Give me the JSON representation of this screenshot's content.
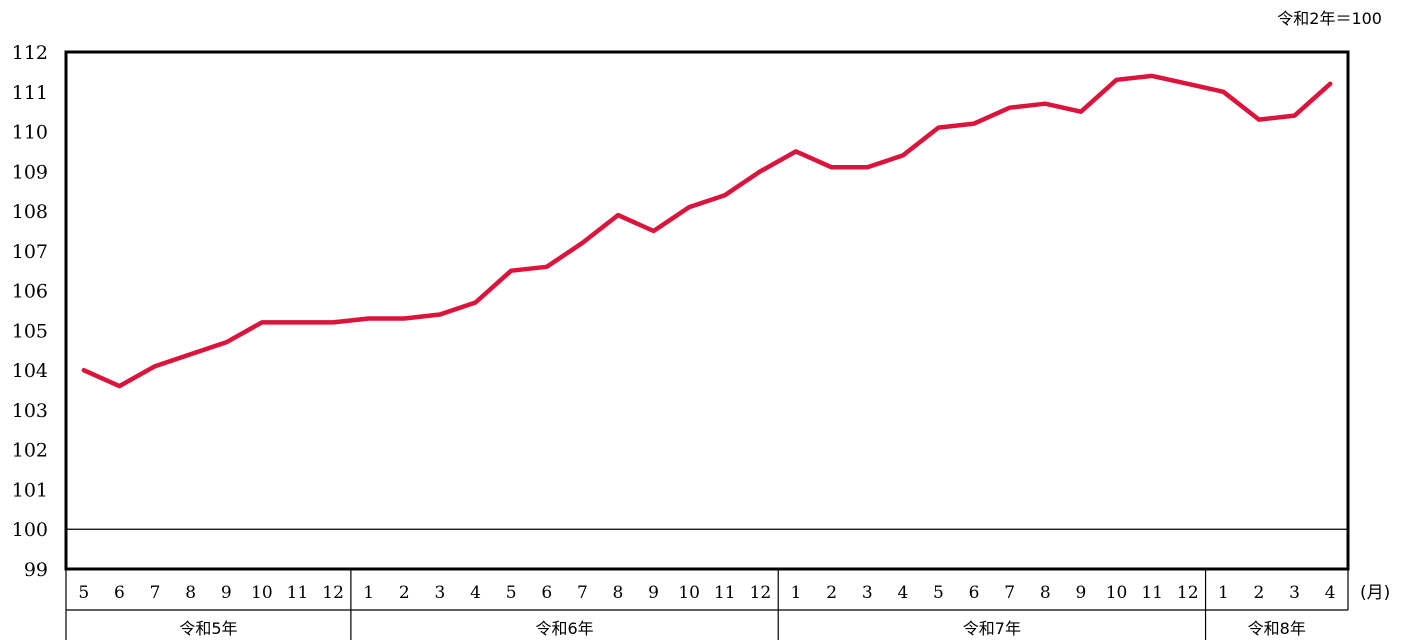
{
  "chart_data": {
    "type": "line",
    "base_note": "令和2年＝100",
    "unit_label": "(月)",
    "ylim": [
      99,
      112
    ],
    "y_ticks": [
      99,
      100,
      101,
      102,
      103,
      104,
      105,
      106,
      107,
      108,
      109,
      110,
      111,
      112
    ],
    "reference_line": 100,
    "grid": false,
    "line_color": "#dc143c",
    "months": [
      "5",
      "6",
      "7",
      "8",
      "9",
      "10",
      "11",
      "12",
      "1",
      "2",
      "3",
      "4",
      "5",
      "6",
      "7",
      "8",
      "9",
      "10",
      "11",
      "12",
      "1",
      "2",
      "3",
      "4",
      "5",
      "6",
      "7",
      "8",
      "9",
      "10",
      "11",
      "12",
      "1",
      "2",
      "3",
      "4"
    ],
    "groups": [
      {
        "label": "令和5年",
        "count": 8
      },
      {
        "label": "令和6年",
        "count": 12
      },
      {
        "label": "令和7年",
        "count": 12
      },
      {
        "label": "令和8年",
        "count": 4
      }
    ],
    "series": [
      {
        "values": [
          104.0,
          103.6,
          104.1,
          104.4,
          104.7,
          105.2,
          105.2,
          105.2,
          105.3,
          105.3,
          105.4,
          105.7,
          106.5,
          106.6,
          107.2,
          107.9,
          107.5,
          108.1,
          108.4,
          109.0,
          109.5,
          109.1,
          109.1,
          109.4,
          110.1,
          110.2,
          110.6,
          110.7,
          110.5,
          111.3,
          111.4,
          111.2,
          111.0,
          110.3,
          110.4,
          111.2
        ]
      }
    ]
  }
}
